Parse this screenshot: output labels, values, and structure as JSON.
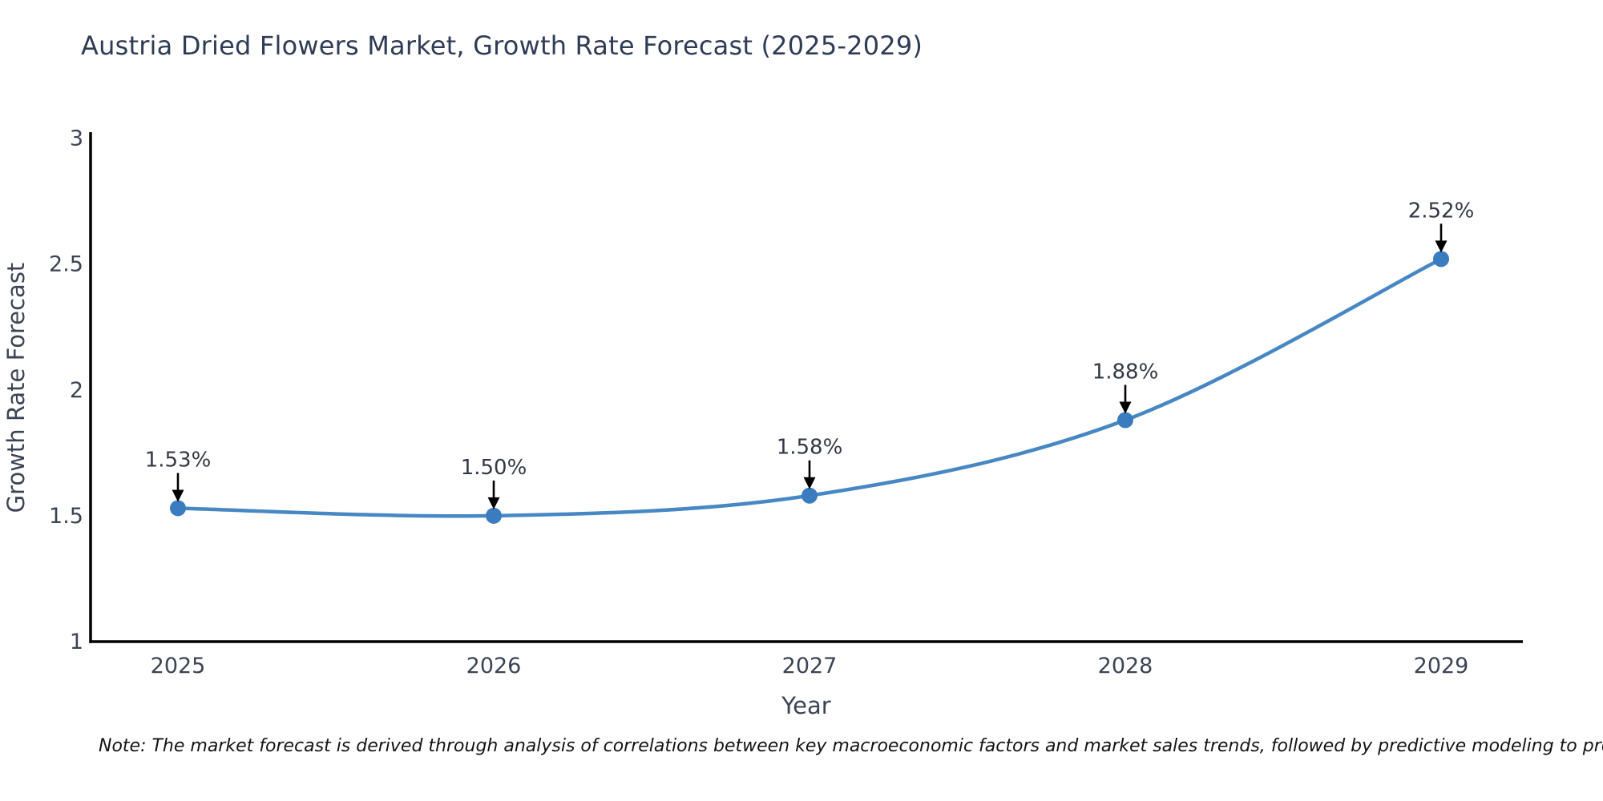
{
  "chart_data": {
    "type": "line",
    "title": "Austria Dried Flowers Market, Growth Rate Forecast (2025-2029)",
    "xlabel": "Year",
    "ylabel": "Growth Rate Forecast",
    "x": [
      "2025",
      "2026",
      "2027",
      "2028",
      "2029"
    ],
    "series": [
      {
        "name": "Growth Rate Forecast",
        "values": [
          1.53,
          1.5,
          1.58,
          1.88,
          2.52
        ]
      }
    ],
    "point_labels": [
      "1.53%",
      "1.50%",
      "1.58%",
      "1.88%",
      "2.52%"
    ],
    "ylim": [
      1,
      3
    ],
    "yticks": [
      1,
      1.5,
      2,
      2.5,
      3
    ],
    "ytick_labels": [
      "1",
      "1.5",
      "2",
      "2.5",
      "3"
    ],
    "grid": false,
    "legend": "none",
    "line_shape": "spline",
    "colors": {
      "line": "#4787c3",
      "marker": "#3a7cbf",
      "axis": "#000000",
      "tick_text": "#3b4454",
      "title_text": "#2f3c55",
      "annotation_text": "#333844",
      "annotation_arrow": "#000000"
    }
  },
  "note": "Note: The market forecast is derived through analysis of correlations between key macroeconomic factors and market sales trends, followed by predictive modeling to project future sales trends."
}
